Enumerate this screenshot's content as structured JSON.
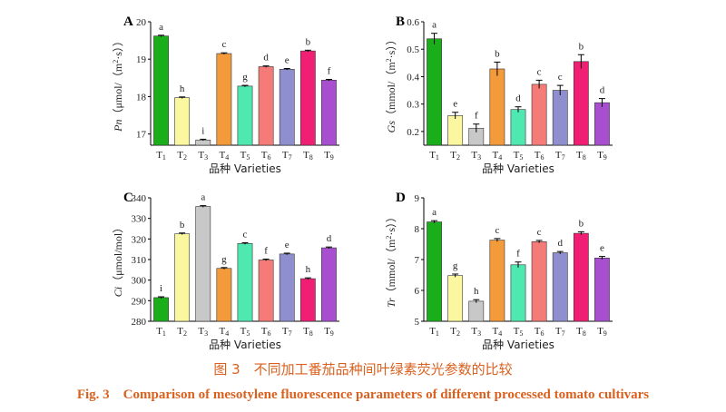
{
  "caption_cn": "图 3　不同加工番茄品种间叶绿素荧光参数的比较",
  "caption_en": "Fig. 3　Comparison of mesotylene fluorescence parameters of different processed tomato cultivars",
  "colors": [
    "#1aaf1a",
    "#fbf7a0",
    "#c8c8c8",
    "#f39a3a",
    "#4ee8b0",
    "#f57b78",
    "#8f8fcf",
    "#f01f74",
    "#a84fd0"
  ],
  "chart_data": [
    {
      "type": "bar",
      "panel": "A",
      "ylabel": "Pn（μmol/（m²·s））",
      "xlabel": "品种 Varieties",
      "categories": [
        "T1",
        "T2",
        "T3",
        "T4",
        "T5",
        "T6",
        "T7",
        "T8",
        "T9"
      ],
      "values": [
        19.62,
        17.97,
        16.84,
        19.15,
        18.28,
        18.8,
        18.73,
        19.22,
        18.44
      ],
      "errors": [
        0.02,
        0.02,
        0.02,
        0.02,
        0.02,
        0.02,
        0.02,
        0.02,
        0.02
      ],
      "letters": [
        "a",
        "h",
        "i",
        "c",
        "g",
        "d",
        "e",
        "b",
        "f"
      ],
      "ylim": [
        16.7,
        20.0
      ],
      "yticks": [
        17,
        18,
        19,
        20
      ]
    },
    {
      "type": "bar",
      "panel": "B",
      "ylabel": "Gs（mmol/（m²·s））",
      "xlabel": "品种 Varieties",
      "categories": [
        "T1",
        "T2",
        "T3",
        "T4",
        "T5",
        "T6",
        "T7",
        "T8",
        "T9"
      ],
      "values": [
        0.538,
        0.258,
        0.212,
        0.428,
        0.28,
        0.372,
        0.35,
        0.455,
        0.305
      ],
      "errors": [
        0.02,
        0.012,
        0.015,
        0.025,
        0.01,
        0.015,
        0.018,
        0.025,
        0.015
      ],
      "letters": [
        "a",
        "e",
        "f",
        "b",
        "d",
        "c",
        "c",
        "b",
        "d"
      ],
      "ylim": [
        0.15,
        0.6
      ],
      "yticks": [
        0.2,
        0.3,
        0.4,
        0.5,
        0.6
      ]
    },
    {
      "type": "bar",
      "panel": "C",
      "ylabel": "Ci（μmol/mol）",
      "xlabel": "品种 Varieties",
      "categories": [
        "T1",
        "T2",
        "T3",
        "T4",
        "T5",
        "T6",
        "T7",
        "T8",
        "T9"
      ],
      "values": [
        291.5,
        322.5,
        335.8,
        305.7,
        317.8,
        309.8,
        312.7,
        300.7,
        315.7
      ],
      "errors": [
        0.4,
        0.4,
        0.4,
        0.4,
        0.4,
        0.4,
        0.4,
        0.4,
        0.4
      ],
      "letters": [
        "i",
        "b",
        "a",
        "g",
        "c",
        "f",
        "e",
        "h",
        "d"
      ],
      "ylim": [
        280,
        340
      ],
      "yticks": [
        280,
        290,
        300,
        310,
        320,
        330,
        340
      ]
    },
    {
      "type": "bar",
      "panel": "D",
      "ylabel": "Tr（mmol/（m²·s））",
      "xlabel": "品种 Varieties",
      "categories": [
        "T1",
        "T2",
        "T3",
        "T4",
        "T5",
        "T6",
        "T7",
        "T8",
        "T9"
      ],
      "values": [
        8.22,
        6.48,
        5.65,
        7.63,
        6.83,
        7.58,
        7.22,
        7.85,
        7.05
      ],
      "errors": [
        0.04,
        0.05,
        0.05,
        0.05,
        0.09,
        0.04,
        0.04,
        0.05,
        0.05
      ],
      "letters": [
        "a",
        "g",
        "h",
        "c",
        "f",
        "c",
        "d",
        "b",
        "e"
      ],
      "ylim": [
        5,
        9
      ],
      "yticks": [
        5,
        6,
        7,
        8,
        9
      ]
    }
  ]
}
